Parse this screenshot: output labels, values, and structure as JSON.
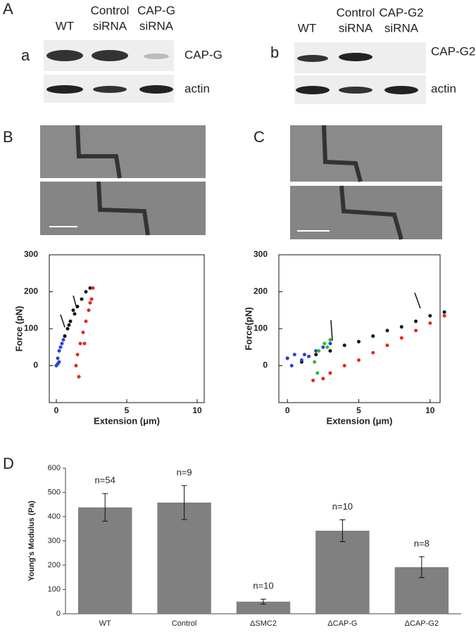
{
  "labels": {
    "A": "A",
    "a": "a",
    "b": "b",
    "B": "B",
    "C": "C",
    "D": "D"
  },
  "blot_a": {
    "lanes": [
      [
        "WT"
      ],
      [
        "Control",
        "siRNA"
      ],
      [
        "CAP-G",
        "siRNA"
      ]
    ],
    "bands": [
      "CAP-G",
      "actin"
    ]
  },
  "blot_b": {
    "lanes": [
      [
        "WT"
      ],
      [
        "Control",
        "siRNA"
      ],
      [
        "CAP-G2",
        "siRNA"
      ]
    ],
    "bands": [
      "CAP-G2",
      "actin"
    ]
  },
  "chart_data": [
    {
      "type": "scatter",
      "xlabel": "Extension (μm)",
      "ylabel": "Force (pN)",
      "xlim": [
        -0.5,
        10.5
      ],
      "ylim": [
        -100,
        300
      ],
      "xticks": [
        0,
        5,
        10
      ],
      "yticks": [
        0,
        100,
        200,
        300
      ],
      "series": [
        {
          "color": "#2b3fd8",
          "x": [
            0,
            0.1,
            0.2,
            0.3,
            0.4,
            0.5,
            0.2,
            0.6,
            0.1
          ],
          "values": [
            0,
            20,
            40,
            50,
            60,
            70,
            10,
            80,
            5
          ]
        },
        {
          "color": "#111111",
          "x": [
            0.6,
            0.8,
            1,
            1.3,
            1.5,
            1.8,
            2.1,
            2.4,
            1.2,
            0.9
          ],
          "values": [
            80,
            100,
            120,
            140,
            160,
            180,
            200,
            210,
            150,
            110
          ]
        },
        {
          "color": "#e8261e",
          "x": [
            2.6,
            2.5,
            2.3,
            2.1,
            1.9,
            1.7,
            1.5,
            1.4,
            1.6,
            2.0,
            2.4
          ],
          "values": [
            210,
            180,
            150,
            120,
            90,
            60,
            30,
            0,
            -30,
            60,
            170
          ]
        }
      ]
    },
    {
      "type": "scatter",
      "xlabel": "Extension (μm)",
      "ylabel": "Force(pN)",
      "xlim": [
        -0.6,
        10.7
      ],
      "ylim": [
        -100,
        300
      ],
      "xticks": [
        0,
        5,
        10
      ],
      "yticks": [
        0,
        100,
        200,
        300
      ],
      "series": [
        {
          "color": "#111111",
          "x": [
            0,
            1,
            2,
            3,
            4,
            5,
            6,
            7,
            8,
            9,
            10,
            11
          ],
          "values": [
            20,
            10,
            30,
            40,
            55,
            65,
            80,
            95,
            105,
            120,
            135,
            145
          ]
        },
        {
          "color": "#e8261e",
          "x": [
            1.8,
            2.5,
            3,
            4,
            5,
            6,
            7,
            8,
            9,
            10,
            11
          ],
          "values": [
            -40,
            -35,
            -20,
            0,
            15,
            35,
            55,
            75,
            95,
            115,
            135
          ]
        },
        {
          "color": "#2b3fd8",
          "x": [
            0,
            0.5,
            1,
            1.5,
            2,
            2.5,
            3,
            0.3,
            1.2
          ],
          "values": [
            20,
            30,
            15,
            25,
            40,
            50,
            60,
            0,
            30
          ]
        },
        {
          "color": "#22c032",
          "x": [
            1.9,
            2.2,
            2.6,
            3,
            2.1,
            2.8
          ],
          "values": [
            10,
            40,
            60,
            70,
            -20,
            50
          ]
        }
      ]
    },
    {
      "type": "bar",
      "ylabel": "Young's Modulus (Pa)",
      "categories": [
        "WT",
        "Control",
        "ΔSMC2",
        "ΔCAP-G",
        "ΔCAP-G2"
      ],
      "values": [
        438,
        458,
        50,
        342,
        192
      ],
      "errors": [
        57,
        70,
        10,
        45,
        43
      ],
      "annotations": [
        "n=54",
        "n=9",
        "n=10",
        "n=10",
        "n=8"
      ],
      "color": "#808080",
      "ylim": [
        0,
        600
      ],
      "yticks": [
        0,
        100,
        200,
        300,
        400,
        500,
        600
      ]
    }
  ]
}
